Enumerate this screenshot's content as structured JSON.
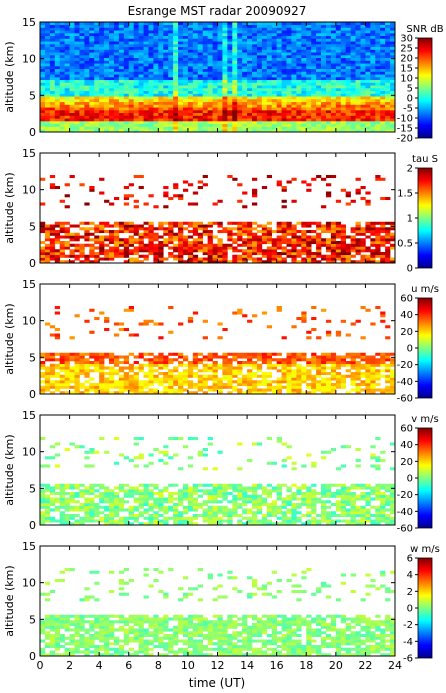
{
  "title": "Esrange MST radar 20090927",
  "xlabel": "time (UT)",
  "x_ticks": [
    0,
    2,
    4,
    6,
    8,
    10,
    12,
    14,
    16,
    18,
    20,
    22,
    24
  ],
  "chart_data": [
    {
      "type": "heatmap",
      "ylabel": "altitude (km)",
      "xlim": [
        0,
        24
      ],
      "ylim": [
        0,
        15
      ],
      "y_ticks": [
        0,
        5,
        10,
        15
      ],
      "colorbar": {
        "label": "SNR dB",
        "range": [
          -20,
          30
        ],
        "ticks": [
          -20,
          -15,
          -10,
          -5,
          0,
          5,
          10,
          15,
          20,
          25,
          30
        ]
      }
    },
    {
      "type": "heatmap",
      "ylabel": "altitude (km)",
      "xlim": [
        0,
        24
      ],
      "ylim": [
        0,
        15
      ],
      "y_ticks": [
        0,
        5,
        10,
        15
      ],
      "colorbar": {
        "label": "tau S",
        "range": [
          0,
          2
        ],
        "ticks": [
          0,
          0.5,
          1,
          1.5,
          2
        ]
      }
    },
    {
      "type": "heatmap",
      "ylabel": "altitude (km)",
      "xlim": [
        0,
        24
      ],
      "ylim": [
        0,
        15
      ],
      "y_ticks": [
        0,
        5,
        10,
        15
      ],
      "colorbar": {
        "label": "u m/s",
        "range": [
          -60,
          60
        ],
        "ticks": [
          -60,
          -40,
          -20,
          0,
          20,
          40,
          60
        ]
      }
    },
    {
      "type": "heatmap",
      "ylabel": "altitude (km)",
      "xlim": [
        0,
        24
      ],
      "ylim": [
        0,
        15
      ],
      "y_ticks": [
        0,
        5,
        10,
        15
      ],
      "colorbar": {
        "label": "v m/s",
        "range": [
          -60,
          60
        ],
        "ticks": [
          -60,
          -40,
          -20,
          0,
          20,
          40,
          60
        ]
      }
    },
    {
      "type": "heatmap",
      "ylabel": "altitude (km)",
      "xlim": [
        0,
        24
      ],
      "ylim": [
        0,
        15
      ],
      "y_ticks": [
        0,
        5,
        10,
        15
      ],
      "colorbar": {
        "label": "w m/s",
        "range": [
          -6,
          6
        ],
        "ticks": [
          -6,
          -4,
          -2,
          0,
          2,
          4,
          6
        ]
      }
    }
  ]
}
